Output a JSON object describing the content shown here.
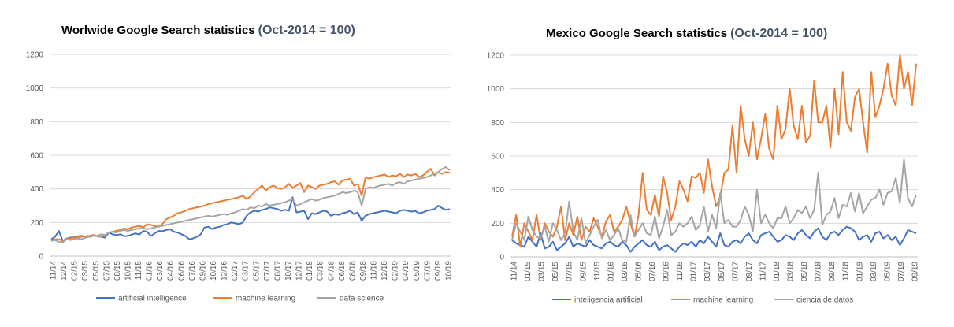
{
  "colors": {
    "blue": "#4472c4",
    "orange": "#ed7d31",
    "gray": "#a5a5a5",
    "grid": "#d9d9d9"
  },
  "chart_data": [
    {
      "type": "line",
      "title": "Worlwide Google Search statistics",
      "subtitle": "(Oct-2014 = 100)",
      "ylim": [
        0,
        1200
      ],
      "yticks": [
        "0",
        "200",
        "400",
        "600",
        "800",
        "1000",
        "1200"
      ],
      "x_tick_labels": [
        "11/14",
        "12/14",
        "02/15",
        "03/15",
        "05/15",
        "07/15",
        "08/15",
        "10/15",
        "11/15",
        "01/16",
        "03/16",
        "04/16",
        "06/16",
        "07/16",
        "09/16",
        "10/16",
        "12/16",
        "02/17",
        "03/17",
        "05/17",
        "07/17",
        "08/17",
        "10/17",
        "12/17",
        "01/18",
        "03/18",
        "04/18",
        "06/18",
        "08/18",
        "09/18",
        "11/18",
        "12/18",
        "02/19",
        "04/19",
        "05/19",
        "07/19",
        "09/19",
        "10/19"
      ],
      "grid": true,
      "legend": "bottom",
      "series": [
        {
          "name": "artificial intelligence",
          "color": "#4472c4",
          "values": [
            100,
            115,
            150,
            90,
            105,
            110,
            112,
            118,
            120,
            115,
            120,
            125,
            118,
            115,
            110,
            140,
            130,
            125,
            130,
            118,
            120,
            128,
            135,
            128,
            150,
            145,
            120,
            135,
            150,
            148,
            155,
            160,
            145,
            140,
            130,
            120,
            100,
            105,
            115,
            130,
            170,
            175,
            160,
            170,
            175,
            185,
            190,
            200,
            195,
            190,
            200,
            240,
            260,
            270,
            265,
            275,
            280,
            290,
            285,
            280,
            270,
            275,
            270,
            350,
            260,
            265,
            270,
            220,
            255,
            250,
            260,
            270,
            265,
            240,
            250,
            245,
            255,
            260,
            270,
            250,
            260,
            210,
            240,
            250,
            255,
            260,
            265,
            270,
            265,
            260,
            255,
            270,
            275,
            270,
            265,
            268,
            255,
            260,
            270,
            275,
            280,
            300,
            285,
            275,
            280
          ]
        },
        {
          "name": "machine learning",
          "color": "#ed7d31",
          "values": [
            95,
            100,
            100,
            90,
            105,
            105,
            110,
            112,
            115,
            118,
            120,
            125,
            120,
            115,
            125,
            140,
            145,
            150,
            155,
            165,
            160,
            170,
            175,
            180,
            170,
            190,
            185,
            180,
            175,
            190,
            220,
            230,
            240,
            255,
            260,
            270,
            280,
            285,
            290,
            295,
            300,
            310,
            315,
            320,
            325,
            330,
            335,
            340,
            345,
            350,
            360,
            340,
            355,
            380,
            400,
            420,
            390,
            410,
            420,
            405,
            400,
            410,
            430,
            405,
            420,
            435,
            380,
            420,
            410,
            400,
            420,
            425,
            430,
            440,
            445,
            425,
            450,
            455,
            460,
            420,
            430,
            360,
            470,
            460,
            470,
            475,
            480,
            485,
            470,
            480,
            475,
            490,
            470,
            485,
            480,
            490,
            470,
            480,
            500,
            520,
            480,
            500,
            490,
            500,
            495
          ]
        },
        {
          "name": "data science",
          "color": "#a5a5a5",
          "values": [
            90,
            95,
            85,
            80,
            100,
            95,
            100,
            105,
            100,
            110,
            115,
            120,
            120,
            130,
            125,
            140,
            145,
            140,
            150,
            155,
            150,
            155,
            160,
            165,
            165,
            160,
            165,
            170,
            175,
            180,
            185,
            190,
            195,
            200,
            205,
            210,
            215,
            220,
            225,
            230,
            235,
            240,
            235,
            240,
            245,
            250,
            245,
            255,
            260,
            270,
            280,
            275,
            290,
            285,
            300,
            295,
            310,
            300,
            305,
            310,
            315,
            320,
            330,
            340,
            300,
            310,
            320,
            330,
            340,
            330,
            335,
            345,
            350,
            355,
            360,
            370,
            380,
            375,
            380,
            390,
            380,
            300,
            400,
            410,
            405,
            415,
            420,
            425,
            430,
            420,
            435,
            440,
            430,
            445,
            450,
            455,
            460,
            465,
            470,
            480,
            490,
            500,
            520,
            530,
            510
          ]
        }
      ]
    },
    {
      "type": "line",
      "title": "Mexico Google Search statistics",
      "subtitle": "(Oct-2014 = 100)",
      "ylim": [
        0,
        1200
      ],
      "yticks": [
        "0",
        "200",
        "400",
        "600",
        "800",
        "1000",
        "1200"
      ],
      "x_tick_labels": [
        "11/14",
        "01/15",
        "03/15",
        "05/15",
        "07/15",
        "09/15",
        "11/15",
        "01/16",
        "03/16",
        "05/16",
        "07/16",
        "09/16",
        "11/16",
        "01/17",
        "03/17",
        "05/17",
        "07/17",
        "09/17",
        "11/17",
        "01/18",
        "03/18",
        "05/18",
        "07/18",
        "09/18",
        "11/18",
        "01/19",
        "03/19",
        "05/19",
        "07/19",
        "09/19"
      ],
      "grid": true,
      "legend": "bottom",
      "series": [
        {
          "name": "inteligencia artificial",
          "color": "#4472c4",
          "values": [
            100,
            80,
            70,
            60,
            120,
            90,
            60,
            140,
            50,
            60,
            90,
            40,
            60,
            80,
            120,
            60,
            80,
            70,
            60,
            100,
            70,
            60,
            50,
            80,
            90,
            70,
            60,
            90,
            70,
            30,
            60,
            80,
            100,
            70,
            60,
            90,
            40,
            60,
            70,
            50,
            30,
            60,
            80,
            70,
            90,
            60,
            100,
            80,
            120,
            90,
            60,
            140,
            70,
            60,
            90,
            100,
            80,
            120,
            140,
            100,
            80,
            130,
            140,
            150,
            120,
            90,
            100,
            130,
            120,
            100,
            140,
            160,
            130,
            110,
            150,
            170,
            120,
            100,
            140,
            150,
            130,
            160,
            180,
            170,
            150,
            100,
            120,
            130,
            90,
            140,
            150,
            110,
            130,
            100,
            120,
            70,
            110,
            160,
            150,
            140
          ]
        },
        {
          "name": "machine learning",
          "color": "#ed7d31",
          "values": [
            120,
            250,
            60,
            200,
            150,
            100,
            250,
            100,
            200,
            150,
            120,
            180,
            300,
            100,
            200,
            130,
            240,
            100,
            180,
            150,
            230,
            180,
            120,
            210,
            250,
            150,
            180,
            220,
            300,
            200,
            120,
            250,
            500,
            280,
            250,
            370,
            240,
            480,
            380,
            220,
            300,
            450,
            400,
            330,
            480,
            470,
            500,
            380,
            580,
            420,
            300,
            360,
            500,
            520,
            780,
            500,
            900,
            700,
            600,
            800,
            580,
            700,
            850,
            640,
            580,
            900,
            700,
            760,
            1000,
            780,
            700,
            900,
            680,
            720,
            1050,
            800,
            800,
            900,
            650,
            1000,
            730,
            1100,
            800,
            750,
            950,
            1000,
            800,
            620,
            1100,
            830,
            900,
            1000,
            1150,
            960,
            900,
            1200,
            1000,
            1100,
            900,
            1150
          ]
        },
        {
          "name": "ciencia de datos",
          "color": "#a5a5a5",
          "values": [
            100,
            200,
            150,
            100,
            240,
            160,
            120,
            110,
            180,
            90,
            200,
            160,
            100,
            140,
            330,
            150,
            100,
            230,
            80,
            130,
            180,
            220,
            110,
            160,
            100,
            130,
            170,
            100,
            90,
            250,
            120,
            160,
            200,
            140,
            130,
            240,
            110,
            180,
            280,
            130,
            150,
            200,
            180,
            200,
            240,
            160,
            190,
            300,
            150,
            250,
            170,
            380,
            200,
            220,
            180,
            180,
            220,
            300,
            250,
            150,
            400,
            200,
            250,
            200,
            170,
            230,
            230,
            300,
            200,
            230,
            280,
            260,
            300,
            230,
            280,
            500,
            190,
            250,
            270,
            350,
            230,
            310,
            300,
            380,
            270,
            380,
            260,
            300,
            340,
            350,
            400,
            310,
            380,
            390,
            470,
            320,
            580,
            350,
            300,
            370
          ]
        }
      ]
    }
  ]
}
